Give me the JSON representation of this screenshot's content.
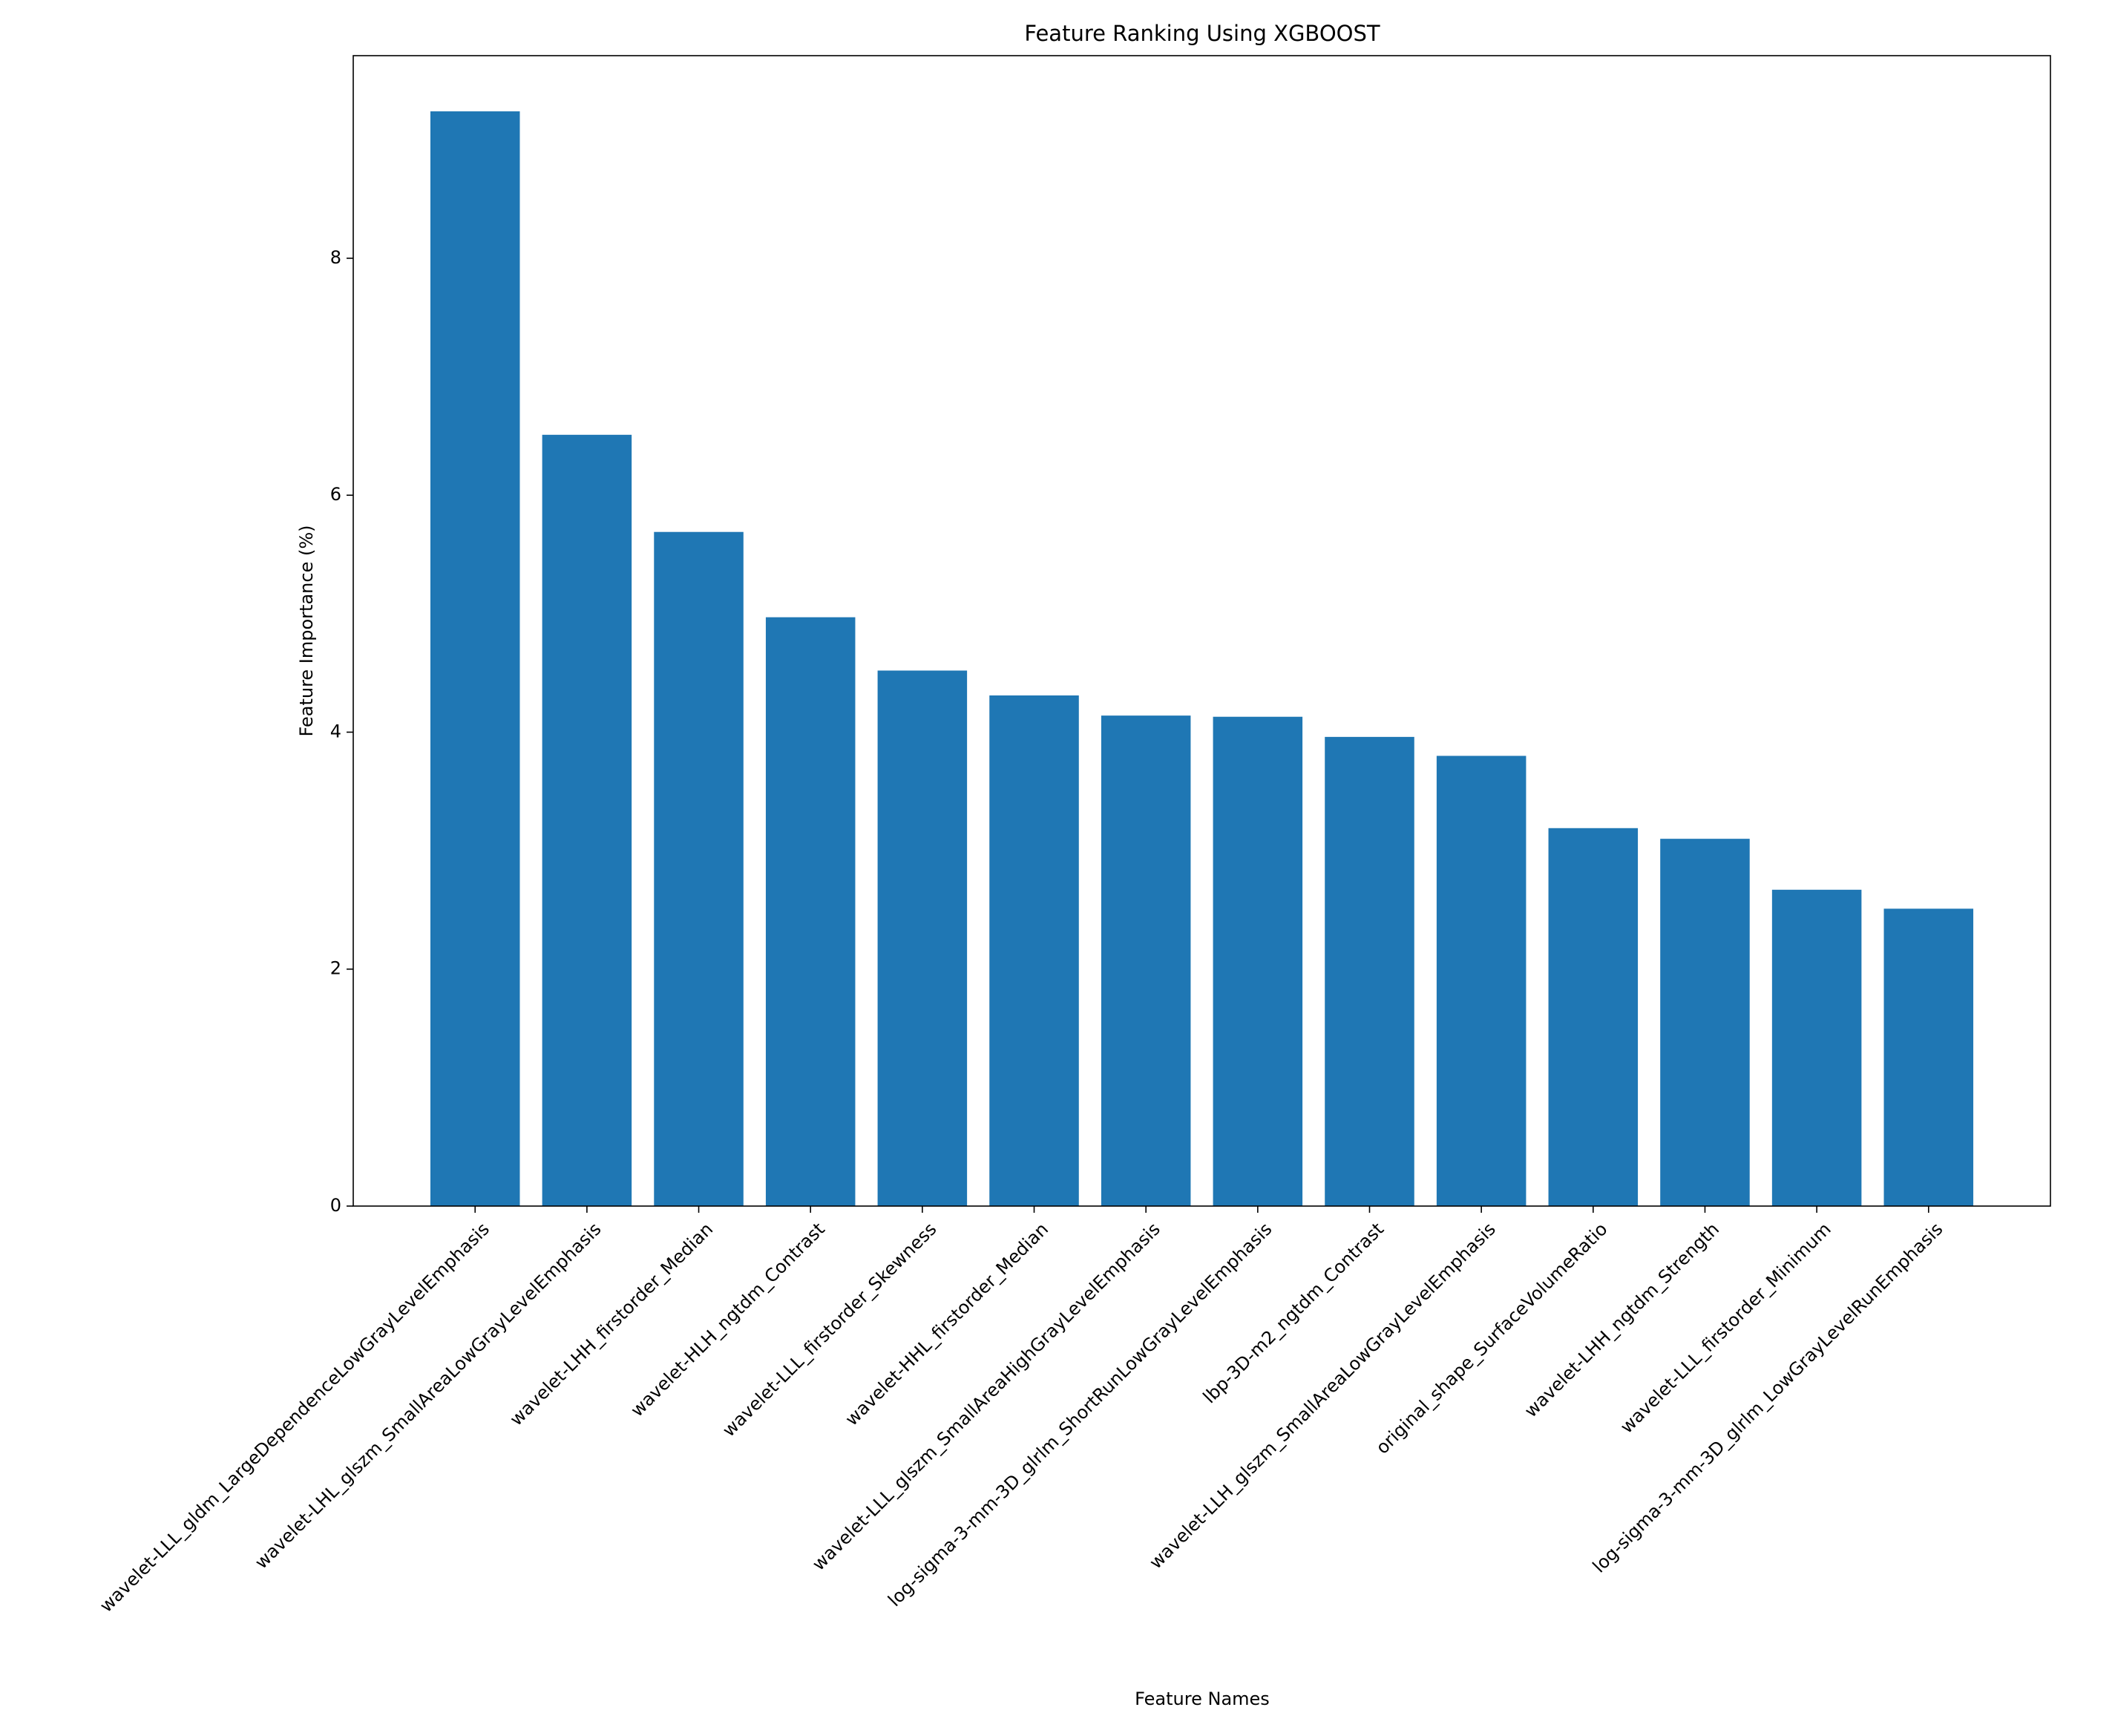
{
  "chart_data": {
    "type": "bar",
    "title": "Feature Ranking Using XGBOOST",
    "x_label": "Feature Names",
    "y_label": "Feature Importance (%)",
    "categories": [
      "wavelet-LLL_gldm_LargeDependenceLowGrayLevelEmphasis",
      "wavelet-LHL_glszm_SmallAreaLowGrayLevelEmphasis",
      "wavelet-LHH_firstorder_Median",
      "wavelet-HLH_ngtdm_Contrast",
      "wavelet-LLL_firstorder_Skewness",
      "wavelet-HHL_firstorder_Median",
      "wavelet-LLL_glszm_SmallAreaHighGrayLevelEmphasis",
      "log-sigma-3-mm-3D_glrlm_ShortRunLowGrayLevelEmphasis",
      "lbp-3D-m2_ngtdm_Contrast",
      "wavelet-LLH_glszm_SmallAreaLowGrayLevelEmphasis",
      "original_shape_SurfaceVolumeRatio",
      "wavelet-LHH_ngtdm_Strength",
      "wavelet-LLL_firstorder_Minimum",
      "log-sigma-3-mm-3D_glrlm_LowGrayLevelRunEmphasis"
    ],
    "values": [
      9.24,
      6.51,
      5.69,
      4.97,
      4.52,
      4.31,
      4.14,
      4.13,
      3.96,
      3.8,
      3.19,
      3.1,
      2.67,
      2.51
    ],
    "color": "#1f77b4",
    "ylim": [
      0,
      9.71
    ],
    "yticks": [
      0,
      2,
      4,
      6,
      8
    ],
    "grid": false
  }
}
